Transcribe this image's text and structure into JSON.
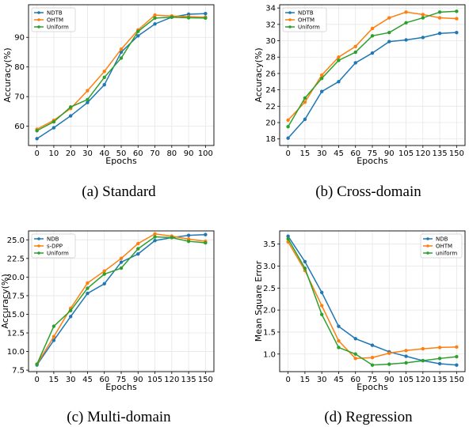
{
  "chart_data": [
    {
      "type": "line",
      "caption": "(a) Standard",
      "x": [
        0,
        10,
        20,
        30,
        40,
        50,
        60,
        70,
        80,
        90,
        100
      ],
      "xticks": [
        "0",
        "10",
        "20",
        "30",
        "40",
        "50",
        "60",
        "70",
        "80",
        "90",
        "100"
      ],
      "xlabel": "Epochs",
      "ylabel": "Accuracy(%)",
      "ylim": [
        53.5,
        101
      ],
      "yticks": [
        60,
        70,
        80,
        90
      ],
      "yticklabels": [
        "60",
        "70",
        "80",
        "90"
      ],
      "legend_position": "top-left",
      "grid": true,
      "series": [
        {
          "name": "NDTB",
          "color": "#1f77b4",
          "values": [
            55.8,
            59.5,
            63.5,
            68,
            74,
            85,
            90.5,
            94.5,
            96.8,
            97.8,
            98
          ]
        },
        {
          "name": "OHTM",
          "color": "#ff7f0e",
          "values": [
            59,
            62,
            66,
            72,
            78.5,
            86,
            92.5,
            97.5,
            97.2,
            97,
            96.8
          ]
        },
        {
          "name": "Uniform",
          "color": "#2ca02c",
          "values": [
            58.5,
            61.5,
            66.5,
            69,
            76.5,
            83,
            92,
            96.5,
            96.8,
            96.6,
            96.5
          ]
        }
      ]
    },
    {
      "type": "line",
      "caption": "(b) Cross-domain",
      "x": [
        0,
        15,
        30,
        45,
        60,
        75,
        90,
        105,
        120,
        135,
        150
      ],
      "xticks": [
        "0",
        "15",
        "30",
        "45",
        "60",
        "75",
        "90",
        "105",
        "120",
        "135",
        "150"
      ],
      "xlabel": "Epochs",
      "ylabel": "Accuracy(%)",
      "ylim": [
        17.2,
        34.4
      ],
      "yticks": [
        18,
        20,
        22,
        24,
        26,
        28,
        30,
        32,
        34
      ],
      "yticklabels": [
        "18",
        "20",
        "22",
        "24",
        "26",
        "28",
        "30",
        "32",
        "34"
      ],
      "legend_position": "top-left",
      "grid": true,
      "series": [
        {
          "name": "NDTB",
          "color": "#1f77b4",
          "values": [
            18.1,
            20.4,
            23.8,
            25,
            27.3,
            28.5,
            29.9,
            30.1,
            30.4,
            30.9,
            31
          ]
        },
        {
          "name": "OHTM",
          "color": "#ff7f0e",
          "values": [
            20.3,
            22.5,
            25.8,
            28,
            29.3,
            31.5,
            32.8,
            33.5,
            33.2,
            32.8,
            32.7
          ]
        },
        {
          "name": "Uniform",
          "color": "#2ca02c",
          "values": [
            19.5,
            23,
            25.4,
            27.6,
            28.6,
            30.6,
            31,
            32.2,
            32.8,
            33.5,
            33.6
          ]
        }
      ]
    },
    {
      "type": "line",
      "caption": "(c) Multi-domain",
      "x": [
        0,
        15,
        30,
        45,
        60,
        75,
        90,
        105,
        120,
        135,
        150
      ],
      "xticks": [
        "0",
        "15",
        "30",
        "45",
        "60",
        "75",
        "90",
        "105",
        "120",
        "135",
        "150"
      ],
      "xlabel": "Epochs",
      "ylabel": "Accuracy(%)",
      "ylim": [
        7.3,
        26.2
      ],
      "yticks": [
        7.5,
        10,
        12.5,
        15,
        17.5,
        20,
        22.5,
        25
      ],
      "yticklabels": [
        "7.5",
        "10.0",
        "12.5",
        "15.0",
        "17.5",
        "20.0",
        "22.5",
        "25.0"
      ],
      "legend_position": "top-left",
      "grid": true,
      "series": [
        {
          "name": "NDB",
          "color": "#1f77b4",
          "values": [
            8.2,
            11.5,
            14.7,
            17.8,
            19.1,
            22,
            23.1,
            24.9,
            25.3,
            25.6,
            25.7
          ]
        },
        {
          "name": "s-DPP",
          "color": "#ff7f0e",
          "values": [
            8.3,
            12,
            15.8,
            19.2,
            20.8,
            22.5,
            24.5,
            25.8,
            25.5,
            25.1,
            24.8
          ]
        },
        {
          "name": "Uniform",
          "color": "#2ca02c",
          "values": [
            8.3,
            13.4,
            15.5,
            18.5,
            20.4,
            21.2,
            23.8,
            25.4,
            25.3,
            24.8,
            24.6
          ]
        }
      ]
    },
    {
      "type": "line",
      "caption": "(d) Regression",
      "x": [
        0,
        15,
        30,
        45,
        60,
        75,
        90,
        105,
        120,
        135,
        150
      ],
      "xticks": [
        "0",
        "15",
        "30",
        "45",
        "60",
        "75",
        "90",
        "105",
        "120",
        "135",
        "150"
      ],
      "xlabel": "Epochs",
      "ylabel": "Mean Square Error",
      "ylim": [
        0.6,
        3.8
      ],
      "yticks": [
        1.0,
        1.5,
        2.0,
        2.5,
        3.0,
        3.5
      ],
      "yticklabels": [
        "1.0",
        "1.5",
        "2.0",
        "2.5",
        "3.0",
        "3.5"
      ],
      "legend_position": "top-right",
      "grid": true,
      "series": [
        {
          "name": "NDB",
          "color": "#1f77b4",
          "values": [
            3.68,
            3.1,
            2.4,
            1.63,
            1.35,
            1.2,
            1.05,
            0.95,
            0.85,
            0.78,
            0.75
          ]
        },
        {
          "name": "OHTM",
          "color": "#ff7f0e",
          "values": [
            3.55,
            2.9,
            2.1,
            1.3,
            0.9,
            0.92,
            1.02,
            1.08,
            1.12,
            1.15,
            1.16
          ]
        },
        {
          "name": "uniform",
          "color": "#2ca02c",
          "values": [
            3.62,
            2.95,
            1.9,
            1.15,
            1.0,
            0.75,
            0.77,
            0.8,
            0.85,
            0.9,
            0.94
          ]
        }
      ]
    }
  ]
}
